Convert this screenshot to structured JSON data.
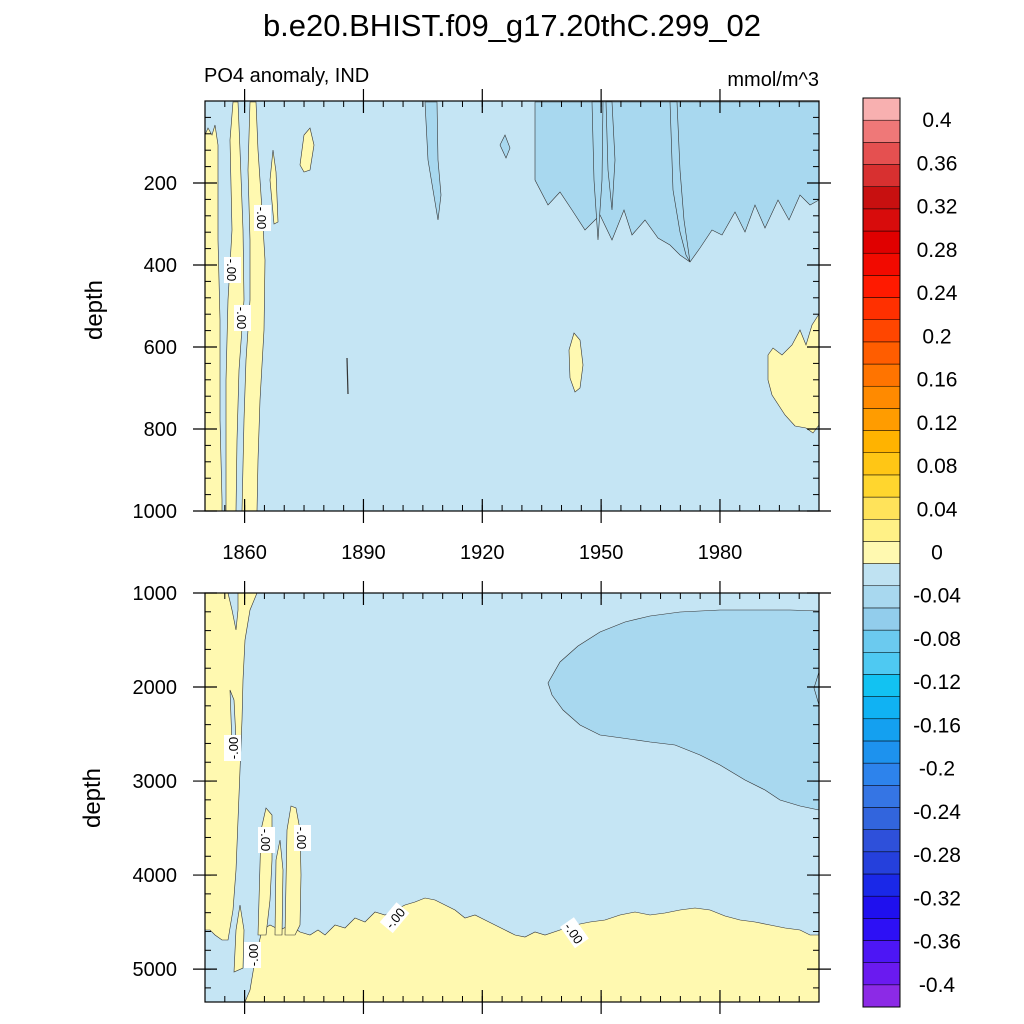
{
  "title": "b.e20.BHIST.f09_g17.20thC.299_02",
  "chart_data": {
    "type": "contour",
    "variable_label": "PO4 anomaly, IND",
    "units": "mmol/m^3",
    "ylabel": "depth",
    "x_tick_labels": [
      "1860",
      "1890",
      "1920",
      "1950",
      "1980"
    ],
    "x_ticks": [
      1860,
      1890,
      1920,
      1950,
      1980
    ],
    "xlim": [
      1850,
      2005
    ],
    "contour_label": "-.00",
    "panels": [
      {
        "name": "upper",
        "ylim": [
          0,
          1000
        ],
        "y_ticks": [
          200,
          400,
          600,
          800,
          1000
        ],
        "y_tick_labels": [
          "200",
          "400",
          "600",
          "800",
          "1000"
        ]
      },
      {
        "name": "lower",
        "ylim": [
          1000,
          5350
        ],
        "y_ticks": [
          1000,
          2000,
          3000,
          4000,
          5000
        ],
        "y_tick_labels": [
          "1000",
          "2000",
          "3000",
          "4000",
          "5000"
        ]
      }
    ],
    "colorbar": {
      "levels": [
        -0.4,
        -0.38,
        -0.36,
        -0.34,
        -0.32,
        -0.3,
        -0.28,
        -0.26,
        -0.24,
        -0.22,
        -0.2,
        -0.18,
        -0.16,
        -0.14,
        -0.12,
        -0.1,
        -0.08,
        -0.06,
        -0.04,
        -0.02,
        0,
        0.02,
        0.04,
        0.06,
        0.08,
        0.1,
        0.12,
        0.14,
        0.16,
        0.18,
        0.2,
        0.22,
        0.24,
        0.26,
        0.28,
        0.3,
        0.32,
        0.34,
        0.36,
        0.38,
        0.4
      ],
      "labels": [
        "-0.4",
        "-0.36",
        "-0.32",
        "-0.28",
        "-0.24",
        "-0.2",
        "-0.16",
        "-0.12",
        "-0.08",
        "-0.04",
        "0",
        "0.04",
        "0.08",
        "0.12",
        "0.16",
        "0.2",
        "0.24",
        "0.28",
        "0.32",
        "0.36",
        "0.4"
      ],
      "colors": [
        "#8c2ae6",
        "#6a1af0",
        "#4d16f5",
        "#2d10f5",
        "#1f10ee",
        "#1a28e8",
        "#2540dc",
        "#2e50da",
        "#3265dd",
        "#3575e4",
        "#2d83ec",
        "#1d92ee",
        "#14a0f0",
        "#10b2f3",
        "#12c2f2",
        "#4ec9f2",
        "#6bcaef",
        "#92cdec",
        "#a8d8ef",
        "#bfe2f2",
        "#fff9b0",
        "#fff186",
        "#ffe35a",
        "#ffd62e",
        "#ffc615",
        "#ffb300",
        "#ff9c00",
        "#ff8a00",
        "#ff7400",
        "#ff5d00",
        "#ff4600",
        "#ff3000",
        "#ff1a00",
        "#f20a00",
        "#e00000",
        "#d80c0c",
        "#c81010",
        "#d83030",
        "#e55050",
        "#ef7878",
        "#f8b0b0"
      ]
    }
  }
}
